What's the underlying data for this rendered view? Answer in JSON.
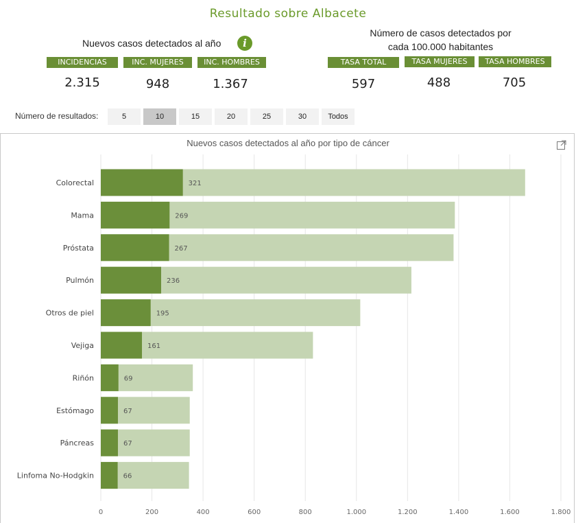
{
  "header": {
    "title": "Resultado sobre  Albacete",
    "left_caption": "Nuevos casos detectados al año",
    "right_caption_line1": "Número de casos detectados por",
    "right_caption_line2": "cada 100.000 habitantes",
    "info_icon": "info-icon"
  },
  "kpis": [
    {
      "label": "INCIDENCIAS",
      "value": "2.315"
    },
    {
      "label": "INC. MUJERES",
      "value": "948"
    },
    {
      "label": "INC. HOMBRES",
      "value": "1.367"
    },
    {
      "label": "TASA TOTAL",
      "value": "597"
    },
    {
      "label": "TASA MUJERES",
      "value": "488"
    },
    {
      "label": "TASA HOMBRES",
      "value": "705"
    }
  ],
  "results_selector": {
    "label": "Número de resultados:",
    "options": [
      "5",
      "10",
      "15",
      "20",
      "25",
      "30",
      "Todos"
    ],
    "selected": "10"
  },
  "colors": {
    "accent": "#6a9a2a",
    "bar_dark": "#6b8f3a",
    "bar_light": "#c5d5b3",
    "kpi_bg": "#6a8f35"
  },
  "chart_data": {
    "type": "bar",
    "orientation": "horizontal",
    "title": "Nuevos casos detectados al año por tipo de cáncer",
    "categories": [
      "Colorectal",
      "Mama",
      "Próstata",
      "Pulmón",
      "Otros de piel",
      "Vejiga",
      "Riñón",
      "Estómago",
      "Páncreas",
      "Linfoma No-Hodgkin"
    ],
    "series": [
      {
        "values": [
          321,
          269,
          267,
          236,
          195,
          161,
          69,
          67,
          67,
          66
        ],
        "color": "#6b8f3a"
      },
      {
        "values": [
          1660,
          1385,
          1380,
          1215,
          1015,
          830,
          360,
          348,
          348,
          345
        ],
        "color": "#c5d5b3"
      }
    ],
    "data_labels": [
      "321",
      "269",
      "267",
      "236",
      "195",
      "161",
      "69",
      "67",
      "67",
      "66"
    ],
    "xlim": [
      0,
      1800
    ],
    "xticks": [
      0,
      200,
      400,
      600,
      800,
      1000,
      1200,
      1400,
      1600,
      1800
    ],
    "xtick_labels": [
      "0",
      "200",
      "400",
      "600",
      "800",
      "1.000",
      "1.200",
      "1.400",
      "1.600",
      "1.800"
    ],
    "grid": "vertical"
  }
}
